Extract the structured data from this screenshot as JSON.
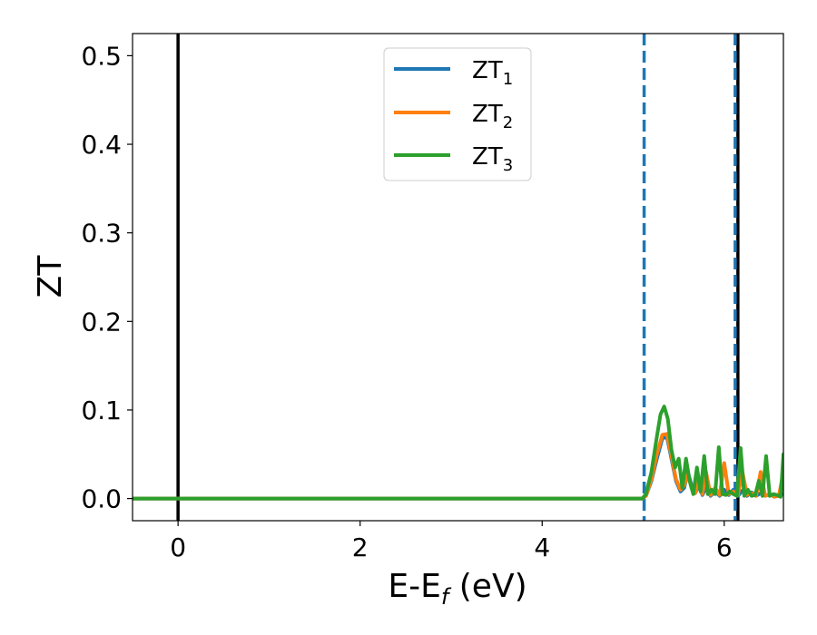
{
  "chart_data": {
    "type": "line",
    "xlabel": "E-E",
    "xlabel_sub": "f",
    "xlabel_unit": " (eV)",
    "ylabel": "ZT",
    "xlim": [
      -0.5,
      6.65
    ],
    "ylim": [
      -0.025,
      0.525
    ],
    "xticks": [
      0,
      2,
      4,
      6
    ],
    "xtick_labels": [
      "0",
      "2",
      "4",
      "6"
    ],
    "yticks": [
      0.0,
      0.1,
      0.2,
      0.3,
      0.4,
      0.5
    ],
    "ytick_labels": [
      "0.0",
      "0.1",
      "0.2",
      "0.3",
      "0.4",
      "0.5"
    ],
    "legend_position": "top-center",
    "grid": false,
    "vlines": [
      {
        "x": 0.0,
        "style": "solid",
        "color": "#000000"
      },
      {
        "x": 6.15,
        "style": "solid",
        "color": "#000000"
      },
      {
        "x": 5.12,
        "style": "dashed",
        "color": "#1f77b4"
      },
      {
        "x": 6.12,
        "style": "dashed",
        "color": "#1f77b4"
      }
    ],
    "series": [
      {
        "name": "ZT",
        "name_sub": "1",
        "color": "#1f77b4",
        "x": [
          -0.5,
          5.1,
          5.14,
          5.2,
          5.26,
          5.32,
          5.37,
          5.42,
          5.47,
          5.52,
          5.56,
          5.6,
          5.64,
          5.68,
          5.72,
          5.76,
          5.8,
          5.85,
          5.9,
          5.95,
          6.0,
          6.05,
          6.1,
          6.15,
          6.2,
          6.25,
          6.3,
          6.35,
          6.4,
          6.45,
          6.5,
          6.55,
          6.6,
          6.65
        ],
        "y": [
          0.0,
          0.0,
          0.003,
          0.02,
          0.045,
          0.068,
          0.07,
          0.045,
          0.02,
          0.008,
          0.012,
          0.03,
          0.015,
          0.006,
          0.015,
          0.004,
          0.012,
          0.003,
          0.008,
          0.003,
          0.01,
          0.004,
          0.01,
          0.003,
          0.009,
          0.003,
          0.007,
          0.003,
          0.006,
          0.003,
          0.005,
          0.002,
          0.004,
          0.005
        ]
      },
      {
        "name": "ZT",
        "name_sub": "2",
        "color": "#ff7f0e",
        "x": [
          -0.5,
          5.1,
          5.14,
          5.2,
          5.26,
          5.32,
          5.37,
          5.42,
          5.47,
          5.52,
          5.56,
          5.6,
          5.64,
          5.68,
          5.72,
          5.76,
          5.8,
          5.85,
          5.9,
          5.95,
          6.0,
          6.05,
          6.1,
          6.15,
          6.2,
          6.25,
          6.3,
          6.35,
          6.4,
          6.45,
          6.5,
          6.55,
          6.6,
          6.65
        ],
        "y": [
          0.0,
          0.0,
          0.003,
          0.022,
          0.05,
          0.072,
          0.073,
          0.048,
          0.022,
          0.01,
          0.015,
          0.028,
          0.012,
          0.006,
          0.02,
          0.005,
          0.03,
          0.004,
          0.012,
          0.004,
          0.04,
          0.005,
          0.008,
          0.004,
          0.03,
          0.004,
          0.006,
          0.003,
          0.03,
          0.003,
          0.005,
          0.002,
          0.003,
          0.03
        ]
      },
      {
        "name": "ZT",
        "name_sub": "3",
        "color": "#2ca02c",
        "x": [
          -0.5,
          5.1,
          5.14,
          5.2,
          5.26,
          5.3,
          5.34,
          5.38,
          5.42,
          5.46,
          5.5,
          5.54,
          5.58,
          5.62,
          5.66,
          5.7,
          5.74,
          5.78,
          5.82,
          5.86,
          5.9,
          5.94,
          5.98,
          6.02,
          6.06,
          6.1,
          6.14,
          6.18,
          6.22,
          6.26,
          6.3,
          6.34,
          6.38,
          6.42,
          6.46,
          6.5,
          6.54,
          6.58,
          6.62,
          6.65
        ],
        "y": [
          0.0,
          0.0,
          0.005,
          0.03,
          0.07,
          0.095,
          0.104,
          0.09,
          0.055,
          0.035,
          0.045,
          0.012,
          0.045,
          0.02,
          0.005,
          0.035,
          0.008,
          0.048,
          0.005,
          0.01,
          0.005,
          0.058,
          0.005,
          0.004,
          0.008,
          0.005,
          0.003,
          0.057,
          0.003,
          0.01,
          0.003,
          0.004,
          0.02,
          0.003,
          0.048,
          0.003,
          0.005,
          0.004,
          0.002,
          0.05
        ]
      }
    ]
  }
}
